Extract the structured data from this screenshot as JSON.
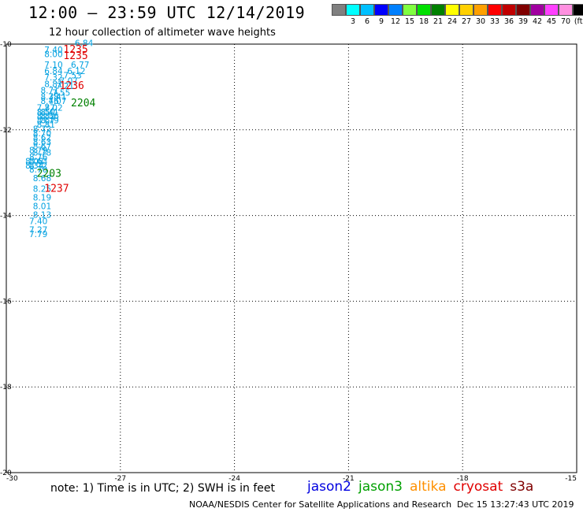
{
  "header": {
    "title": "12:00 — 23:59 UTC 12/14/2019",
    "subtitle": "12 hour collection of altimeter wave heights"
  },
  "legend": {
    "colors": [
      "#808080",
      "#00ffff",
      "#00c0ff",
      "#0000ff",
      "#0080ff",
      "#80ff40",
      "#00e000",
      "#008000",
      "#ffff00",
      "#ffd000",
      "#ffa000",
      "#ff0000",
      "#c00000",
      "#800000",
      "#a000a0",
      "#ff40ff",
      "#ff90e0",
      "#000000"
    ],
    "labels": [
      "",
      "3",
      "6",
      "9",
      "12",
      "15",
      "18",
      "21",
      "24",
      "27",
      "30",
      "33",
      "36",
      "39",
      "42",
      "45",
      "70",
      "(ft)"
    ]
  },
  "map": {
    "lon_range": [
      -30,
      -15
    ],
    "lat_range": [
      -20,
      -10
    ],
    "x_ticks": [
      "-30",
      "-27",
      "-24",
      "-21",
      "-18",
      "-15"
    ],
    "y_ticks": [
      "-10",
      "-12",
      "-14",
      "-16",
      "-18",
      "-20"
    ],
    "swh_color": "#00a0e0",
    "swh_points": [
      {
        "lon": -28.2,
        "lat": -10.05,
        "v": "6.84"
      },
      {
        "lon": -29.0,
        "lat": -10.2,
        "v": "7.40"
      },
      {
        "lon": -29.0,
        "lat": -10.3,
        "v": "8.00"
      },
      {
        "lon": -29.0,
        "lat": -10.55,
        "v": "7.10"
      },
      {
        "lon": -28.3,
        "lat": -10.55,
        "v": "6.77"
      },
      {
        "lon": -29.0,
        "lat": -10.7,
        "v": "6.84"
      },
      {
        "lon": -28.4,
        "lat": -10.7,
        "v": "6.12"
      },
      {
        "lon": -29.0,
        "lat": -10.85,
        "v": "7.32"
      },
      {
        "lon": -28.5,
        "lat": -10.8,
        "v": "7.53"
      },
      {
        "lon": -28.6,
        "lat": -10.93,
        "v": "7.07"
      },
      {
        "lon": -29.0,
        "lat": -11.0,
        "v": "8.81"
      },
      {
        "lon": -28.7,
        "lat": -11.05,
        "v": "7.21"
      },
      {
        "lon": -29.1,
        "lat": -11.15,
        "v": "8.71"
      },
      {
        "lon": -28.8,
        "lat": -11.2,
        "v": "7.55"
      },
      {
        "lon": -29.1,
        "lat": -11.3,
        "v": "8.38"
      },
      {
        "lon": -28.9,
        "lat": -11.3,
        "v": "7.41"
      },
      {
        "lon": -29.1,
        "lat": -11.4,
        "v": "8.46"
      },
      {
        "lon": -28.9,
        "lat": -11.4,
        "v": "7.07"
      },
      {
        "lon": -29.2,
        "lat": -11.55,
        "v": "7.87"
      },
      {
        "lon": -29.0,
        "lat": -11.55,
        "v": "7.02"
      },
      {
        "lon": -29.2,
        "lat": -11.65,
        "v": "8.50"
      },
      {
        "lon": -29.1,
        "lat": -11.65,
        "v": "8.41"
      },
      {
        "lon": -29.2,
        "lat": -11.75,
        "v": "8.82"
      },
      {
        "lon": -29.1,
        "lat": -11.75,
        "v": "8.56"
      },
      {
        "lon": -29.2,
        "lat": -11.85,
        "v": "8.67"
      },
      {
        "lon": -29.1,
        "lat": -11.85,
        "v": "8.79"
      },
      {
        "lon": -29.2,
        "lat": -11.95,
        "v": "8.81"
      },
      {
        "lon": -29.3,
        "lat": -12.05,
        "v": "8.72"
      },
      {
        "lon": -29.3,
        "lat": -12.15,
        "v": "8.70"
      },
      {
        "lon": -29.3,
        "lat": -12.25,
        "v": "8.62"
      },
      {
        "lon": -29.3,
        "lat": -12.35,
        "v": "8.63"
      },
      {
        "lon": -29.3,
        "lat": -12.45,
        "v": "8.67"
      },
      {
        "lon": -29.4,
        "lat": -12.55,
        "v": "8.79"
      },
      {
        "lon": -29.3,
        "lat": -12.6,
        "v": "8.78"
      },
      {
        "lon": -29.4,
        "lat": -12.7,
        "v": "8.76"
      },
      {
        "lon": -29.5,
        "lat": -12.8,
        "v": "8.08"
      },
      {
        "lon": -29.4,
        "lat": -12.8,
        "v": "8.63"
      },
      {
        "lon": -29.5,
        "lat": -12.9,
        "v": "8.34"
      },
      {
        "lon": -29.4,
        "lat": -12.9,
        "v": "8.72"
      },
      {
        "lon": -29.4,
        "lat": -13.0,
        "v": "8.70"
      },
      {
        "lon": -29.3,
        "lat": -13.2,
        "v": "8.68"
      },
      {
        "lon": -29.3,
        "lat": -13.45,
        "v": "8.25"
      },
      {
        "lon": -29.3,
        "lat": -13.65,
        "v": "8.19"
      },
      {
        "lon": -29.3,
        "lat": -13.85,
        "v": "8.01"
      },
      {
        "lon": -29.3,
        "lat": -14.05,
        "v": "8.13"
      },
      {
        "lon": -29.4,
        "lat": -14.2,
        "v": "7.40"
      },
      {
        "lon": -29.4,
        "lat": -14.4,
        "v": "7.27"
      },
      {
        "lon": -29.4,
        "lat": -14.5,
        "v": "7.79"
      }
    ],
    "pass_labels": [
      {
        "lon": -28.5,
        "lat": -10.2,
        "text": "1235",
        "color": "#e00000"
      },
      {
        "lon": -28.5,
        "lat": -10.35,
        "text": "1235",
        "color": "#e00000"
      },
      {
        "lon": -28.6,
        "lat": -11.05,
        "text": "1236",
        "color": "#e00000"
      },
      {
        "lon": -28.3,
        "lat": -11.45,
        "text": "2204",
        "color": "#008000"
      },
      {
        "lon": -29.2,
        "lat": -13.1,
        "text": "2203",
        "color": "#008000"
      },
      {
        "lon": -29.0,
        "lat": -13.45,
        "text": "1237",
        "color": "#e00000"
      }
    ]
  },
  "note": "note: 1) Time is in UTC; 2) SWH is in feet",
  "satellites": [
    {
      "name": "jason2",
      "color": "#0000e0"
    },
    {
      "name": "jason3",
      "color": "#00a000"
    },
    {
      "name": "altika",
      "color": "#ff9000"
    },
    {
      "name": "cryosat",
      "color": "#e00000"
    },
    {
      "name": "s3a",
      "color": "#800000"
    }
  ],
  "footer": {
    "left": "NOAA/NESDIS Center for Satellite Applications and Research",
    "right": "Dec 15 13:27:43 UTC 2019"
  }
}
